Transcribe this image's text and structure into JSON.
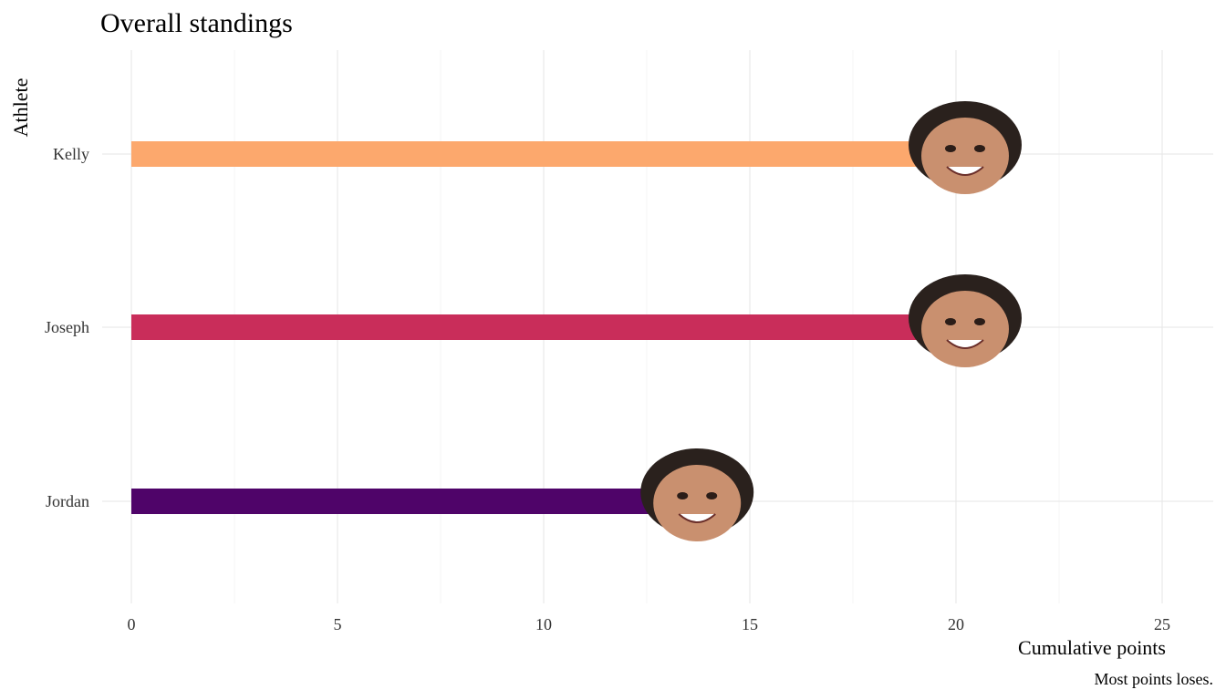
{
  "chart_data": {
    "type": "bar",
    "orientation": "horizontal",
    "title": "Overall standings",
    "xlabel": "Cumulative points",
    "ylabel": "Athlete",
    "caption": "Most points loses.",
    "xlim": [
      0,
      26
    ],
    "xticks": [
      0,
      5,
      10,
      15,
      20,
      25
    ],
    "grid": true,
    "legend": "none",
    "categories": [
      "Kelly",
      "Joseph",
      "Jordan"
    ],
    "values": [
      20,
      20,
      13.5
    ],
    "colors": [
      "#FCA86D",
      "#C92D5A",
      "#4F0469"
    ],
    "marker_images": [
      "face-photo",
      "face-photo",
      "face-photo"
    ]
  }
}
